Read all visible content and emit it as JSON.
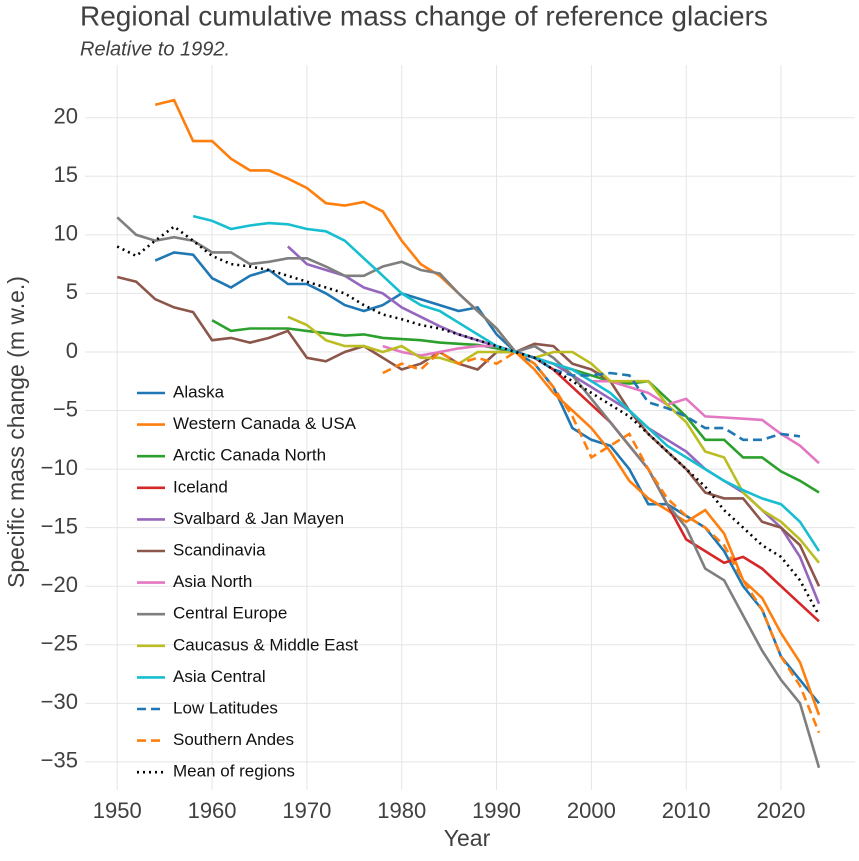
{
  "chart_data": {
    "type": "line",
    "title": "Regional cumulative mass change of reference glaciers",
    "subtitle": "Relative to 1992.",
    "x_label": "Year",
    "y_label": "Specific mass change (m w.e.)",
    "x": [
      1950,
      1952,
      1954,
      1956,
      1958,
      1960,
      1962,
      1964,
      1966,
      1968,
      1970,
      1972,
      1974,
      1976,
      1978,
      1980,
      1982,
      1984,
      1986,
      1988,
      1990,
      1992,
      1994,
      1996,
      1998,
      2000,
      2002,
      2004,
      2006,
      2008,
      2010,
      2012,
      2014,
      2016,
      2018,
      2020,
      2022,
      2024
    ],
    "xlim": [
      1946.6,
      2027.8
    ],
    "xticks": [
      1950,
      1960,
      1970,
      1980,
      1990,
      2000,
      2010,
      2020
    ],
    "ylim": [
      -37.4,
      24.5
    ],
    "yticks": [
      {
        "value": -35,
        "label": "−35"
      },
      {
        "value": -30,
        "label": "−30"
      },
      {
        "value": -25,
        "label": "−25"
      },
      {
        "value": -20,
        "label": "−20"
      },
      {
        "value": -15,
        "label": "−15"
      },
      {
        "value": -10,
        "label": "−10"
      },
      {
        "value": -5,
        "label": "−5"
      },
      0,
      5,
      10,
      15,
      20
    ],
    "grid": true,
    "legend": "lower left",
    "series": [
      {
        "name": "Alaska",
        "color": "#1f77b4",
        "style": "solid",
        "values": [
          null,
          null,
          7.8,
          8.5,
          8.3,
          6.3,
          5.5,
          6.5,
          7.0,
          5.8,
          5.8,
          5.0,
          4.0,
          3.5,
          4.0,
          5.0,
          4.5,
          4.0,
          3.5,
          3.8,
          1.5,
          0,
          -1,
          -3,
          -6.5,
          -7.5,
          -8,
          -10,
          -13,
          -13,
          -14,
          -15,
          -17,
          -20,
          -22,
          -26,
          -28,
          -30
        ]
      },
      {
        "name": "Western Canada & USA",
        "color": "#ff7f0e",
        "style": "solid",
        "values": [
          null,
          null,
          21.1,
          21.5,
          18,
          18,
          16.5,
          15.5,
          15.5,
          14.8,
          14,
          12.7,
          12.5,
          12.8,
          12,
          9.5,
          7.5,
          6.5,
          5,
          3.5,
          2,
          0,
          -1.5,
          -3.5,
          -5,
          -6.5,
          -8.5,
          -11,
          -12.5,
          -13.5,
          -14.5,
          -13.5,
          -15.5,
          -19.5,
          -21,
          -24,
          -26.5,
          -31
        ]
      },
      {
        "name": "Arctic Canada North",
        "color": "#2ca02c",
        "style": "solid",
        "values": [
          null,
          null,
          null,
          null,
          null,
          2.7,
          1.8,
          2.0,
          2.0,
          2.0,
          1.8,
          1.6,
          1.4,
          1.5,
          1.2,
          1.1,
          1.0,
          0.8,
          0.7,
          0.6,
          0.3,
          0,
          -0.5,
          -1,
          -1.5,
          -2,
          -2.5,
          -2.7,
          -2.5,
          -4,
          -5.5,
          -7.5,
          -7.5,
          -9,
          -9,
          -10.2,
          -11,
          -12
        ]
      },
      {
        "name": "Iceland",
        "color": "#d62728",
        "style": "solid",
        "values": [
          null,
          null,
          null,
          null,
          null,
          null,
          null,
          null,
          null,
          null,
          null,
          null,
          null,
          null,
          null,
          null,
          null,
          null,
          null,
          null,
          0.5,
          0,
          -0.5,
          -1.5,
          -3,
          -4.5,
          -6,
          -8,
          -10,
          -13,
          -16,
          -17,
          -18,
          -17.5,
          -18.5,
          -20,
          -21.5,
          -23
        ]
      },
      {
        "name": "Svalbard & Jan Mayen",
        "color": "#9467bd",
        "style": "solid",
        "values": [
          null,
          null,
          null,
          null,
          null,
          null,
          null,
          null,
          null,
          9,
          7.5,
          7,
          6.5,
          5.5,
          5,
          3.8,
          3,
          2.2,
          1.5,
          1,
          0.5,
          0,
          -0.5,
          -1,
          -2,
          -3,
          -4,
          -5,
          -6.5,
          -7.5,
          -8.5,
          -10,
          -11,
          -12,
          -13.5,
          -15,
          -17.5,
          -21.5
        ]
      },
      {
        "name": "Scandinavia",
        "color": "#8c564b",
        "style": "solid",
        "values": [
          6.4,
          6,
          4.5,
          3.8,
          3.4,
          1,
          1.2,
          0.8,
          1.2,
          1.8,
          -0.5,
          -0.8,
          0,
          0.5,
          -0.5,
          -1.5,
          -1,
          0,
          -1,
          -1.5,
          0,
          0,
          0.7,
          0.5,
          -1,
          -1.5,
          -2.5,
          -5,
          -7,
          -8.5,
          -10,
          -12,
          -12.5,
          -12.5,
          -14.5,
          -15,
          -16.5,
          -20
        ]
      },
      {
        "name": "Asia North",
        "color": "#e377c2",
        "style": "solid",
        "values": [
          null,
          null,
          null,
          null,
          null,
          null,
          null,
          null,
          null,
          null,
          null,
          null,
          null,
          null,
          0.5,
          0,
          -0.3,
          0,
          0.3,
          0.5,
          0.5,
          0,
          -0.5,
          -1,
          -1.5,
          -2.5,
          -2.5,
          -3,
          -3.5,
          -4.5,
          -4,
          -5.5,
          -5.6,
          -5.7,
          -5.8,
          -7,
          -8,
          -9.5
        ]
      },
      {
        "name": "Central Europe",
        "color": "#7f7f7f",
        "style": "solid",
        "values": [
          11.5,
          10,
          9.5,
          9.8,
          9.5,
          8.5,
          8.5,
          7.5,
          7.7,
          8,
          8,
          7.3,
          6.5,
          6.5,
          7.3,
          7.7,
          7,
          6.7,
          5,
          3.5,
          2,
          0,
          0.5,
          -0.5,
          -2,
          -4,
          -6,
          -8,
          -10,
          -13,
          -15,
          -18.5,
          -19.5,
          -22.5,
          -25.5,
          -28,
          -30,
          -35.5
        ]
      },
      {
        "name": "Caucasus & Middle East",
        "color": "#bcbd22",
        "style": "solid",
        "values": [
          null,
          null,
          null,
          null,
          null,
          null,
          null,
          null,
          null,
          3,
          2.3,
          1,
          0.5,
          0.5,
          0,
          0.5,
          -0.5,
          -0.5,
          -1,
          0,
          0,
          0,
          -0.5,
          0,
          0,
          -1,
          -2.5,
          -2.5,
          -2.5,
          -4.5,
          -6,
          -8.5,
          -9,
          -12,
          -13.5,
          -14.5,
          -16,
          -18
        ]
      },
      {
        "name": "Asia Central",
        "color": "#17becf",
        "style": "solid",
        "values": [
          null,
          null,
          null,
          null,
          11.6,
          11.2,
          10.5,
          10.8,
          11,
          10.9,
          10.5,
          10.3,
          9.5,
          8,
          6.5,
          5,
          4,
          3.5,
          2.5,
          1.5,
          0.5,
          0,
          -0.5,
          -1,
          -1.5,
          -2.5,
          -3.5,
          -5,
          -6.5,
          -8,
          -9,
          -10,
          -11,
          -11.8,
          -12.5,
          -13,
          -14.5,
          -17
        ]
      },
      {
        "name": "Low Latitudes",
        "color": "#1f77b4",
        "style": "dashed",
        "values": [
          null,
          null,
          null,
          null,
          null,
          null,
          null,
          null,
          null,
          null,
          null,
          null,
          null,
          null,
          null,
          null,
          null,
          null,
          null,
          null,
          null,
          0,
          -0.5,
          -1.5,
          -2,
          -2,
          -1.8,
          -2,
          -4.3,
          -4.8,
          -5.5,
          -6.5,
          -6.5,
          -7.5,
          -7.5,
          -7,
          -7.2,
          null
        ]
      },
      {
        "name": "Southern Andes",
        "color": "#ff7f0e",
        "style": "dashed",
        "values": [
          null,
          null,
          null,
          null,
          null,
          null,
          null,
          null,
          null,
          null,
          null,
          null,
          null,
          null,
          -1.8,
          -1,
          -1.5,
          0,
          -1,
          -0.5,
          -1,
          0,
          -1,
          -3,
          -5.5,
          -9,
          -8,
          -7,
          -10,
          -12.5,
          -14,
          -15,
          -16.5,
          -19.5,
          -22,
          -26,
          -28.5,
          -32.5
        ]
      },
      {
        "name": "Mean of regions",
        "color": "#000000",
        "style": "dotted",
        "values": [
          9,
          8.2,
          9.5,
          10.7,
          9.5,
          8.2,
          7.5,
          7.3,
          7.0,
          6.5,
          6,
          5.5,
          5,
          4,
          3.2,
          2.8,
          2.3,
          2,
          1.5,
          1,
          0.5,
          0,
          -0.5,
          -1.5,
          -2.5,
          -3.5,
          -4.5,
          -5.5,
          -7,
          -8.5,
          -10,
          -11.5,
          -13.5,
          -15,
          -16.5,
          -17.5,
          -19.5,
          -22.5
        ]
      }
    ]
  }
}
